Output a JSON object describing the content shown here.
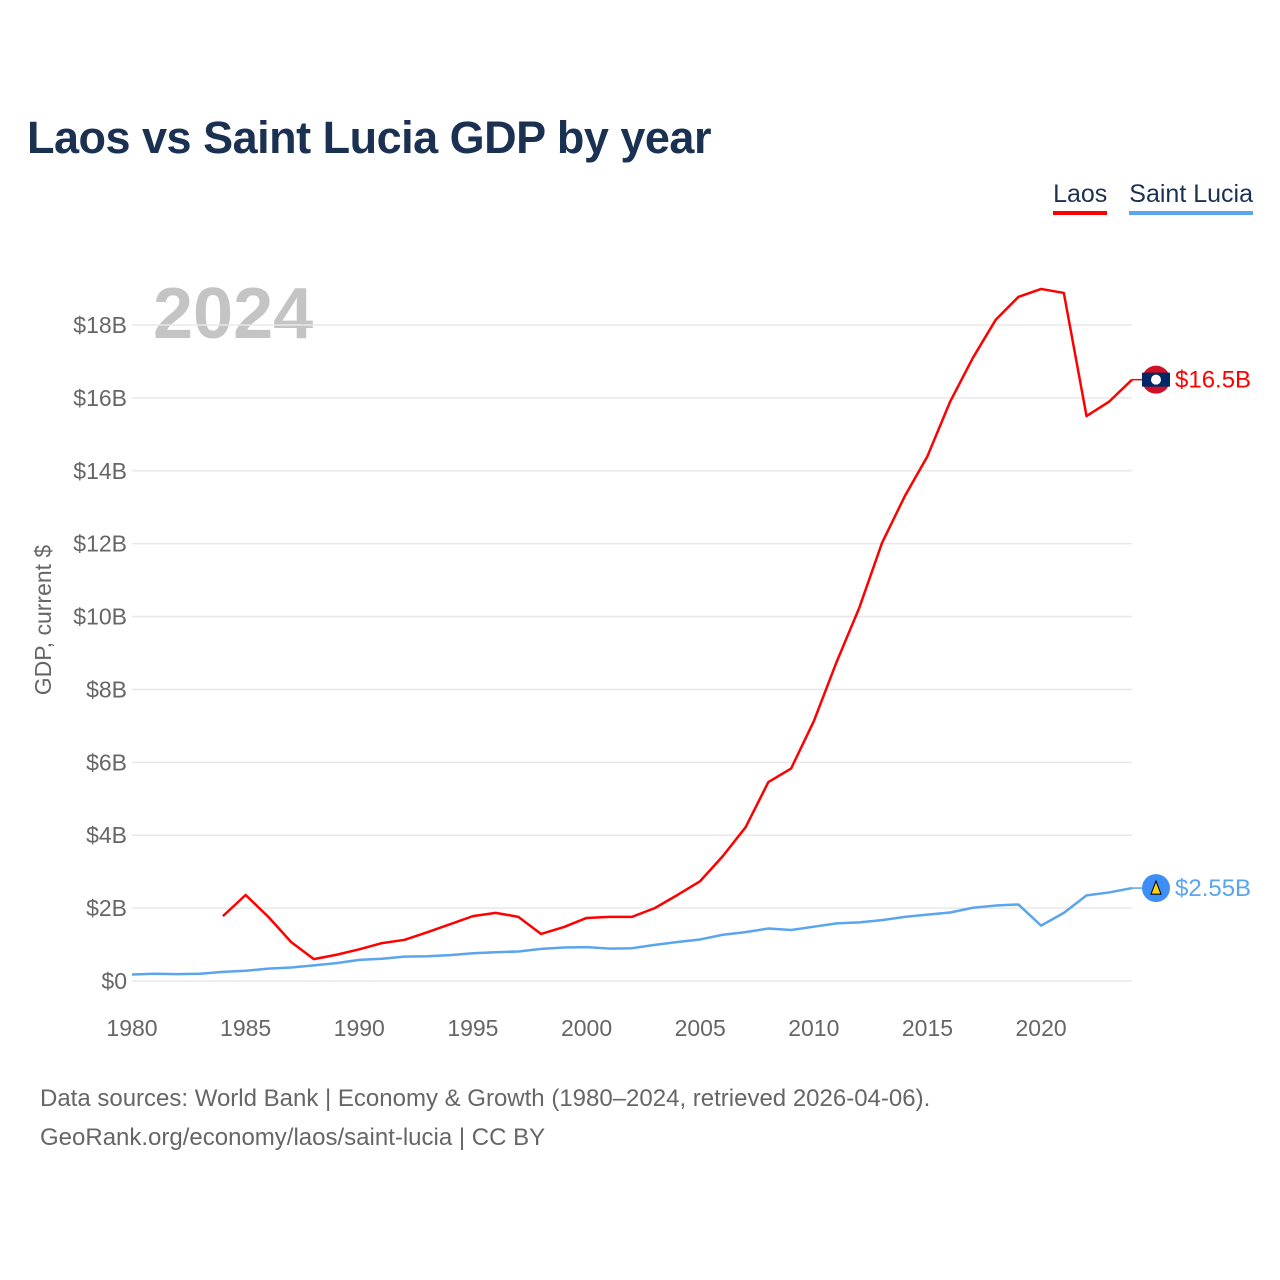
{
  "title": "Laos vs Saint Lucia GDP by year",
  "year_label": "2024",
  "footer": {
    "line1": "Data sources: World Bank | Economy & Growth (1980–2024, retrieved 2026-04-06).",
    "line2": "GeoRank.org/economy/laos/saint-lucia | CC BY"
  },
  "chart_data": {
    "type": "line",
    "title": "Laos vs Saint Lucia GDP by year",
    "xlabel": "",
    "ylabel": "GDP, current $",
    "xlim": [
      1980,
      2024
    ],
    "ylim": [
      0,
      18
    ],
    "x_ticks": [
      1980,
      1985,
      1990,
      1995,
      2000,
      2005,
      2010,
      2015,
      2020
    ],
    "y_ticks": [
      0,
      2,
      4,
      6,
      8,
      10,
      12,
      14,
      16,
      18
    ],
    "y_tick_labels": [
      "$0",
      "$2B",
      "$4B",
      "$6B",
      "$8B",
      "$10B",
      "$12B",
      "$14B",
      "$16B",
      "$18B"
    ],
    "grid": true,
    "legend_position": "top-right",
    "series": [
      {
        "name": "Laos",
        "color": "#ff0000",
        "end_label": "$16.5B",
        "x": [
          1984,
          1985,
          1986,
          1987,
          1988,
          1989,
          1990,
          1991,
          1992,
          1993,
          1994,
          1995,
          1996,
          1997,
          1998,
          1999,
          2000,
          2001,
          2002,
          2003,
          2004,
          2005,
          2006,
          2007,
          2008,
          2009,
          2010,
          2011,
          2012,
          2013,
          2014,
          2015,
          2016,
          2017,
          2018,
          2019,
          2020,
          2021,
          2022,
          2023,
          2024
        ],
        "values": [
          1.78,
          2.36,
          1.76,
          1.07,
          0.6,
          0.72,
          0.87,
          1.04,
          1.13,
          1.34,
          1.56,
          1.78,
          1.87,
          1.76,
          1.29,
          1.48,
          1.73,
          1.76,
          1.76,
          2.0,
          2.36,
          2.74,
          3.43,
          4.22,
          5.46,
          5.83,
          7.13,
          8.75,
          10.24,
          12.02,
          13.3,
          14.4,
          15.9,
          17.1,
          18.14,
          18.77,
          18.99,
          18.88,
          15.5,
          15.9,
          16.5
        ]
      },
      {
        "name": "Saint Lucia",
        "color": "#5aa5ee",
        "end_label": "$2.55B",
        "x": [
          1980,
          1981,
          1982,
          1983,
          1984,
          1985,
          1986,
          1987,
          1988,
          1989,
          1990,
          1991,
          1992,
          1993,
          1994,
          1995,
          1996,
          1997,
          1998,
          1999,
          2000,
          2001,
          2002,
          2003,
          2004,
          2005,
          2006,
          2007,
          2008,
          2009,
          2010,
          2011,
          2012,
          2013,
          2014,
          2015,
          2016,
          2017,
          2018,
          2019,
          2020,
          2021,
          2022,
          2023,
          2024
        ],
        "values": [
          0.18,
          0.2,
          0.19,
          0.2,
          0.25,
          0.28,
          0.34,
          0.37,
          0.43,
          0.49,
          0.58,
          0.61,
          0.67,
          0.68,
          0.71,
          0.76,
          0.79,
          0.81,
          0.88,
          0.92,
          0.93,
          0.89,
          0.9,
          0.99,
          1.07,
          1.14,
          1.27,
          1.34,
          1.44,
          1.4,
          1.49,
          1.58,
          1.61,
          1.67,
          1.76,
          1.82,
          1.88,
          2.01,
          2.07,
          2.1,
          1.52,
          1.87,
          2.35,
          2.43,
          2.55
        ]
      }
    ]
  }
}
